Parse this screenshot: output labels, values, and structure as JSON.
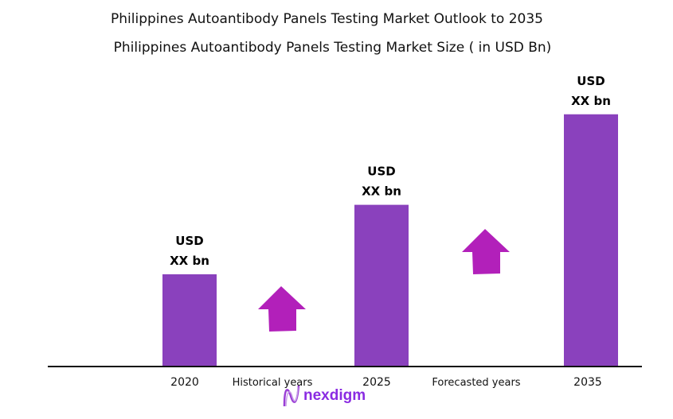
{
  "chart_data": {
    "type": "bar",
    "title": "Philippines Autoantibody Panels Testing Market Outlook to 2035",
    "subtitle": "Philippines Autoantibody Panels Testing Market Size  ( in USD Bn)",
    "categories": [
      "2020",
      "2025",
      "2035"
    ],
    "values": [
      1.0,
      1.76,
      2.75
    ],
    "data_labels": [
      [
        "USD",
        "XX bn"
      ],
      [
        "USD",
        "XX bn"
      ],
      [
        "USD",
        "XX bn"
      ]
    ],
    "ylim": [
      0,
      3
    ],
    "grid": false,
    "period_labels": [
      "Historical years",
      "Forecasted years"
    ],
    "colors": {
      "bar": "#8A41BD",
      "arrow": "#B220BA",
      "axis": "#111111"
    }
  },
  "logo": {
    "text": "nexdigm"
  }
}
